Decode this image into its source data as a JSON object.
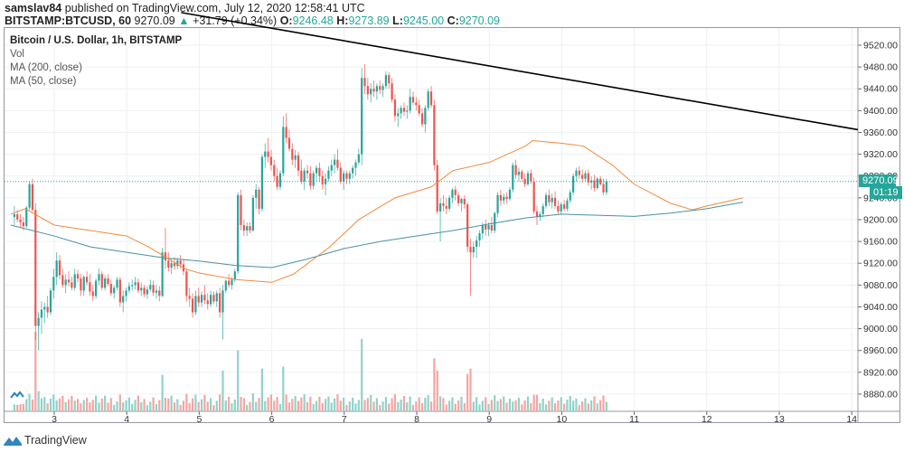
{
  "header": {
    "author": "samslav84",
    "published_text": "published on TradingView.com, July 12, 2020 12:58:41 UTC",
    "symbol": "BITSTAMP:BTCUSD, 60",
    "last_price": "9270.09",
    "change_arrow": "▲",
    "change": "+31.79 (+0.34%)",
    "ohlc": {
      "o_label": "O:",
      "o": "9246.48",
      "h_label": "H:",
      "h": "9273.89",
      "l_label": "L:",
      "l": "9245.00",
      "c_label": "C:",
      "c": "9270.09"
    }
  },
  "legend": {
    "title": "Bitcoin / U.S. Dollar, 1h, BITSTAMP",
    "vol": "Vol",
    "ma200": "MA (200, close)",
    "ma50": "MA (50, close)"
  },
  "price_tag": "9270.09",
  "countdown": "01:19",
  "footer": {
    "brand": "TradingView"
  },
  "colors": {
    "up": "#26a69a",
    "down": "#ef5350",
    "vol_up": "#8fd3c9",
    "vol_down": "#f5a5a3",
    "ma200": "#4a90a4",
    "ma50": "#f28a3c",
    "trendline": "#000000",
    "grid": "#eef0f3"
  },
  "chart_data": {
    "type": "candlestick",
    "title": "Bitcoin / U.S. Dollar, 1h, BITSTAMP",
    "xlabel": "",
    "ylabel": "",
    "x_ticks": [
      "3",
      "4",
      "5",
      "6",
      "7",
      "8",
      "9",
      "10",
      "11",
      "12",
      "13",
      "14"
    ],
    "y_ticks": [
      "9520.00",
      "9480.00",
      "9440.00",
      "9400.00",
      "9360.00",
      "9320.00",
      "9280.00",
      "9240.00",
      "9200.00",
      "9160.00",
      "9120.00",
      "9080.00",
      "9040.00",
      "9000.00",
      "8960.00",
      "8920.00",
      "8880.00"
    ],
    "ylim": [
      8860,
      9540
    ],
    "last_price": 9270.09,
    "trendline": {
      "from": {
        "day": 5.0,
        "price": 9560
      },
      "to": {
        "day": 14.1,
        "price": 9365
      }
    },
    "ma200": [
      [
        2.4,
        9190
      ],
      [
        3.0,
        9170
      ],
      [
        3.5,
        9150
      ],
      [
        4.0,
        9140
      ],
      [
        4.5,
        9130
      ],
      [
        5.0,
        9124
      ],
      [
        5.5,
        9116
      ],
      [
        6.0,
        9112
      ],
      [
        6.5,
        9128
      ],
      [
        7.0,
        9147
      ],
      [
        7.5,
        9160
      ],
      [
        8.0,
        9170
      ],
      [
        8.5,
        9180
      ],
      [
        9.0,
        9192
      ],
      [
        9.5,
        9203
      ],
      [
        10.0,
        9210
      ],
      [
        10.5,
        9208
      ],
      [
        11.0,
        9206
      ],
      [
        11.5,
        9212
      ],
      [
        12.0,
        9220
      ],
      [
        12.5,
        9232
      ]
    ],
    "ma50": [
      [
        2.4,
        9210
      ],
      [
        2.6,
        9220
      ],
      [
        3.0,
        9190
      ],
      [
        3.5,
        9180
      ],
      [
        4.0,
        9170
      ],
      [
        4.3,
        9150
      ],
      [
        4.8,
        9110
      ],
      [
        5.0,
        9102
      ],
      [
        5.5,
        9090
      ],
      [
        6.0,
        9085
      ],
      [
        6.3,
        9100
      ],
      [
        6.8,
        9150
      ],
      [
        7.2,
        9200
      ],
      [
        7.7,
        9240
      ],
      [
        8.2,
        9260
      ],
      [
        8.5,
        9290
      ],
      [
        9.0,
        9305
      ],
      [
        9.5,
        9335
      ],
      [
        9.6,
        9345
      ],
      [
        10.0,
        9340
      ],
      [
        10.3,
        9335
      ],
      [
        10.7,
        9300
      ],
      [
        11.0,
        9265
      ],
      [
        11.5,
        9230
      ],
      [
        11.8,
        9218
      ],
      [
        12.0,
        9225
      ],
      [
        12.5,
        9240
      ]
    ],
    "candles_note": "OHLC per 1h candle, approximate readings from the screenshot",
    "start_day": 2.45,
    "candles": [
      [
        9205,
        9225,
        9190,
        9210
      ],
      [
        9210,
        9218,
        9195,
        9200
      ],
      [
        9200,
        9210,
        9185,
        9195
      ],
      [
        9195,
        9205,
        9180,
        9188
      ],
      [
        9188,
        9225,
        9185,
        9222
      ],
      [
        9222,
        9270,
        9218,
        9265
      ],
      [
        9265,
        9275,
        9215,
        9218
      ],
      [
        9218,
        9230,
        8980,
        9005
      ],
      [
        9005,
        9030,
        8960,
        9020
      ],
      [
        9020,
        9050,
        8990,
        9035
      ],
      [
        9035,
        9048,
        9010,
        9040
      ],
      [
        9040,
        9060,
        9020,
        9030
      ],
      [
        9030,
        9075,
        9025,
        9070
      ],
      [
        9070,
        9110,
        9055,
        9095
      ],
      [
        9095,
        9140,
        9080,
        9125
      ],
      [
        9125,
        9135,
        9090,
        9098
      ],
      [
        9098,
        9110,
        9075,
        9080
      ],
      [
        9080,
        9100,
        9065,
        9090
      ],
      [
        9090,
        9105,
        9078,
        9085
      ],
      [
        9085,
        9095,
        9070,
        9075
      ],
      [
        9075,
        9110,
        9070,
        9100
      ],
      [
        9100,
        9108,
        9085,
        9092
      ],
      [
        9092,
        9100,
        9060,
        9070
      ],
      [
        9070,
        9098,
        9060,
        9095
      ],
      [
        9095,
        9105,
        9080,
        9085
      ],
      [
        9085,
        9100,
        9060,
        9068
      ],
      [
        9068,
        9080,
        9050,
        9060
      ],
      [
        9060,
        9092,
        9055,
        9088
      ],
      [
        9088,
        9110,
        9080,
        9100
      ],
      [
        9100,
        9105,
        9070,
        9075
      ],
      [
        9075,
        9098,
        9070,
        9092
      ],
      [
        9092,
        9100,
        9078,
        9082
      ],
      [
        9082,
        9090,
        9060,
        9065
      ],
      [
        9065,
        9080,
        9055,
        9075
      ],
      [
        9075,
        9095,
        9070,
        9090
      ],
      [
        9090,
        9095,
        9040,
        9048
      ],
      [
        9048,
        9070,
        9030,
        9060
      ],
      [
        9060,
        9075,
        9050,
        9070
      ],
      [
        9070,
        9085,
        9065,
        9078
      ],
      [
        9078,
        9090,
        9070,
        9080
      ],
      [
        9080,
        9095,
        9072,
        9085
      ],
      [
        9085,
        9092,
        9065,
        9070
      ],
      [
        9070,
        9085,
        9060,
        9075
      ],
      [
        9075,
        9080,
        9058,
        9063
      ],
      [
        9063,
        9078,
        9055,
        9072
      ],
      [
        9072,
        9090,
        9068,
        9080
      ],
      [
        9080,
        9088,
        9060,
        9066
      ],
      [
        9066,
        9080,
        9055,
        9070
      ],
      [
        9070,
        9078,
        9050,
        9060
      ],
      [
        9060,
        9148,
        9058,
        9140
      ],
      [
        9140,
        9185,
        9110,
        9125
      ],
      [
        9125,
        9140,
        9105,
        9112
      ],
      [
        9112,
        9128,
        9100,
        9120
      ],
      [
        9120,
        9132,
        9108,
        9115
      ],
      [
        9115,
        9130,
        9110,
        9125
      ],
      [
        9125,
        9135,
        9110,
        9118
      ],
      [
        9118,
        9128,
        9098,
        9105
      ],
      [
        9105,
        9110,
        9050,
        9060
      ],
      [
        9060,
        9075,
        9040,
        9055
      ],
      [
        9055,
        9065,
        9020,
        9030
      ],
      [
        9030,
        9070,
        9025,
        9060
      ],
      [
        9060,
        9075,
        9040,
        9048
      ],
      [
        9048,
        9068,
        9040,
        9062
      ],
      [
        9062,
        9080,
        9045,
        9052
      ],
      [
        9052,
        9065,
        9035,
        9045
      ],
      [
        9045,
        9070,
        9040,
        9062
      ],
      [
        9062,
        9068,
        9045,
        9050
      ],
      [
        9050,
        9070,
        9040,
        9065
      ],
      [
        9065,
        9075,
        9020,
        9030
      ],
      [
        9030,
        9080,
        8980,
        9070
      ],
      [
        9070,
        9090,
        9065,
        9088
      ],
      [
        9088,
        9100,
        9075,
        9080
      ],
      [
        9080,
        9095,
        9072,
        9090
      ],
      [
        9090,
        9110,
        9085,
        9105
      ],
      [
        9105,
        9250,
        9100,
        9245
      ],
      [
        9245,
        9255,
        9180,
        9190
      ],
      [
        9190,
        9200,
        9170,
        9180
      ],
      [
        9180,
        9195,
        9170,
        9188
      ],
      [
        9188,
        9195,
        9175,
        9180
      ],
      [
        9180,
        9245,
        9178,
        9240
      ],
      [
        9240,
        9265,
        9220,
        9255
      ],
      [
        9255,
        9260,
        9210,
        9220
      ],
      [
        9220,
        9320,
        9215,
        9315
      ],
      [
        9315,
        9340,
        9295,
        9325
      ],
      [
        9325,
        9350,
        9305,
        9315
      ],
      [
        9315,
        9328,
        9290,
        9300
      ],
      [
        9300,
        9310,
        9270,
        9280
      ],
      [
        9280,
        9295,
        9255,
        9260
      ],
      [
        9260,
        9290,
        9255,
        9285
      ],
      [
        9285,
        9390,
        9280,
        9370
      ],
      [
        9370,
        9395,
        9340,
        9350
      ],
      [
        9350,
        9365,
        9325,
        9330
      ],
      [
        9330,
        9340,
        9300,
        9310
      ],
      [
        9310,
        9328,
        9295,
        9318
      ],
      [
        9318,
        9325,
        9280,
        9290
      ],
      [
        9290,
        9310,
        9265,
        9270
      ],
      [
        9270,
        9295,
        9255,
        9290
      ],
      [
        9290,
        9300,
        9275,
        9285
      ],
      [
        9285,
        9298,
        9255,
        9262
      ],
      [
        9262,
        9290,
        9255,
        9285
      ],
      [
        9285,
        9300,
        9270,
        9295
      ],
      [
        9295,
        9305,
        9270,
        9280
      ],
      [
        9280,
        9290,
        9255,
        9265
      ],
      [
        9265,
        9285,
        9245,
        9275
      ],
      [
        9275,
        9298,
        9270,
        9290
      ],
      [
        9290,
        9310,
        9280,
        9300
      ],
      [
        9300,
        9320,
        9285,
        9310
      ],
      [
        9310,
        9330,
        9290,
        9295
      ],
      [
        9295,
        9305,
        9265,
        9270
      ],
      [
        9270,
        9290,
        9255,
        9285
      ],
      [
        9285,
        9290,
        9265,
        9275
      ],
      [
        9275,
        9290,
        9265,
        9285
      ],
      [
        9285,
        9300,
        9275,
        9295
      ],
      [
        9295,
        9310,
        9280,
        9305
      ],
      [
        9305,
        9330,
        9300,
        9320
      ],
      [
        9320,
        9478,
        9300,
        9460
      ],
      [
        9460,
        9485,
        9430,
        9445
      ],
      [
        9445,
        9460,
        9420,
        9430
      ],
      [
        9430,
        9450,
        9415,
        9440
      ],
      [
        9440,
        9455,
        9425,
        9435
      ],
      [
        9435,
        9450,
        9420,
        9445
      ],
      [
        9445,
        9455,
        9430,
        9438
      ],
      [
        9438,
        9450,
        9425,
        9445
      ],
      [
        9445,
        9472,
        9440,
        9465
      ],
      [
        9465,
        9470,
        9440,
        9450
      ],
      [
        9450,
        9460,
        9415,
        9420
      ],
      [
        9420,
        9430,
        9380,
        9390
      ],
      [
        9390,
        9405,
        9370,
        9395
      ],
      [
        9395,
        9410,
        9385,
        9405
      ],
      [
        9405,
        9415,
        9390,
        9398
      ],
      [
        9398,
        9410,
        9385,
        9400
      ],
      [
        9400,
        9440,
        9395,
        9425
      ],
      [
        9425,
        9435,
        9410,
        9415
      ],
      [
        9415,
        9425,
        9400,
        9410
      ],
      [
        9410,
        9420,
        9390,
        9395
      ],
      [
        9395,
        9405,
        9370,
        9375
      ],
      [
        9375,
        9410,
        9360,
        9405
      ],
      [
        9405,
        9440,
        9400,
        9435
      ],
      [
        9435,
        9445,
        9405,
        9410
      ],
      [
        9410,
        9420,
        9290,
        9300
      ],
      [
        9300,
        9310,
        9210,
        9215
      ],
      [
        9215,
        9240,
        9160,
        9230
      ],
      [
        9230,
        9245,
        9215,
        9225
      ],
      [
        9225,
        9240,
        9210,
        9220
      ],
      [
        9220,
        9245,
        9215,
        9240
      ],
      [
        9240,
        9258,
        9230,
        9255
      ],
      [
        9255,
        9262,
        9235,
        9245
      ],
      [
        9245,
        9250,
        9225,
        9230
      ],
      [
        9230,
        9240,
        9215,
        9238
      ],
      [
        9238,
        9245,
        9220,
        9228
      ],
      [
        9228,
        9232,
        9140,
        9150
      ],
      [
        9150,
        9165,
        9060,
        9140
      ],
      [
        9140,
        9160,
        9130,
        9150
      ],
      [
        9150,
        9170,
        9130,
        9162
      ],
      [
        9162,
        9180,
        9150,
        9175
      ],
      [
        9175,
        9195,
        9165,
        9190
      ],
      [
        9190,
        9200,
        9170,
        9182
      ],
      [
        9182,
        9195,
        9170,
        9190
      ],
      [
        9190,
        9205,
        9175,
        9180
      ],
      [
        9180,
        9215,
        9175,
        9212
      ],
      [
        9212,
        9250,
        9205,
        9245
      ],
      [
        9245,
        9255,
        9225,
        9235
      ],
      [
        9235,
        9248,
        9228,
        9242
      ],
      [
        9242,
        9250,
        9230,
        9238
      ],
      [
        9238,
        9260,
        9235,
        9255
      ],
      [
        9255,
        9305,
        9250,
        9300
      ],
      [
        9300,
        9310,
        9275,
        9282
      ],
      [
        9282,
        9295,
        9270,
        9288
      ],
      [
        9288,
        9292,
        9270,
        9275
      ],
      [
        9275,
        9285,
        9260,
        9265
      ],
      [
        9265,
        9290,
        9262,
        9285
      ],
      [
        9285,
        9292,
        9265,
        9270
      ],
      [
        9270,
        9278,
        9210,
        9215
      ],
      [
        9215,
        9225,
        9190,
        9205
      ],
      [
        9205,
        9215,
        9198,
        9210
      ],
      [
        9210,
        9230,
        9205,
        9225
      ],
      [
        9225,
        9250,
        9220,
        9245
      ],
      [
        9245,
        9255,
        9225,
        9232
      ],
      [
        9232,
        9248,
        9220,
        9240
      ],
      [
        9240,
        9252,
        9220,
        9225
      ],
      [
        9225,
        9235,
        9210,
        9215
      ],
      [
        9215,
        9232,
        9210,
        9228
      ],
      [
        9228,
        9236,
        9215,
        9220
      ],
      [
        9220,
        9240,
        9215,
        9235
      ],
      [
        9235,
        9255,
        9230,
        9250
      ],
      [
        9250,
        9285,
        9245,
        9280
      ],
      [
        9280,
        9295,
        9270,
        9290
      ],
      [
        9290,
        9298,
        9275,
        9282
      ],
      [
        9282,
        9292,
        9268,
        9275
      ],
      [
        9275,
        9290,
        9270,
        9285
      ],
      [
        9285,
        9292,
        9262,
        9268
      ],
      [
        9268,
        9280,
        9255,
        9272
      ],
      [
        9272,
        9282,
        9252,
        9258
      ],
      [
        9258,
        9278,
        9255,
        9275
      ],
      [
        9275,
        9280,
        9262,
        9265
      ],
      [
        9265,
        9275,
        9245,
        9250
      ],
      [
        9250,
        9275,
        9245,
        9270
      ]
    ]
  }
}
